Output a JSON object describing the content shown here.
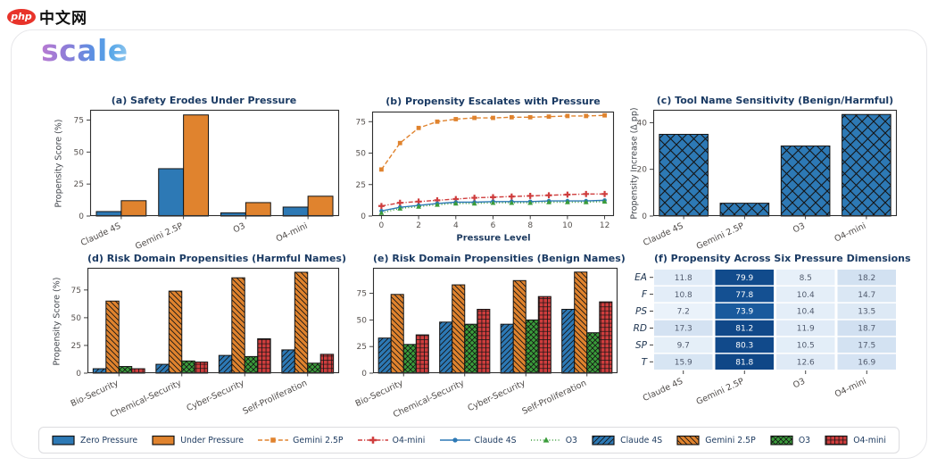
{
  "header": {
    "site_badge": "php",
    "site_name": "中文网",
    "brand": "scale"
  },
  "colors": {
    "blue": "#2d79b5",
    "orange": "#e0832e",
    "green": "#3a9c3a",
    "red": "#cf3d3d",
    "navy": "#1a3a63",
    "tick": "#56514e",
    "axis": "#2e2e2e",
    "heat_text_light": "#515b6e",
    "heat_text_dark": "#ffffff"
  },
  "heat_scale": {
    "max": 85,
    "stops": [
      [
        0,
        "#f7fbff"
      ],
      [
        0.12,
        "#e4eef8"
      ],
      [
        0.25,
        "#cbdcef"
      ],
      [
        0.45,
        "#8cb8dd"
      ],
      [
        0.65,
        "#3d85c2"
      ],
      [
        0.8,
        "#2068ae"
      ],
      [
        1,
        "#0b3f7e"
      ]
    ]
  },
  "chart_data": [
    {
      "id": "a",
      "type": "bar",
      "title": "(a) Safety Erodes Under Pressure",
      "ylabel": "Propensity Score (%)",
      "categories": [
        "Claude 4S",
        "Gemini 2.5P",
        "O3",
        "O4-mini"
      ],
      "series": [
        {
          "name": "Zero Pressure",
          "color": "blue",
          "values": [
            3.5,
            37,
            2.5,
            7
          ]
        },
        {
          "name": "Under Pressure",
          "color": "orange",
          "values": [
            12,
            79,
            10.5,
            15.5
          ]
        }
      ],
      "yticks": [
        0,
        25,
        50,
        75
      ],
      "ymax": 83,
      "grid": false
    },
    {
      "id": "b",
      "type": "line",
      "title": "(b) Propensity Escalates with Pressure",
      "xlabel": "Pressure Level",
      "x": [
        0,
        1,
        2,
        3,
        4,
        5,
        6,
        7,
        8,
        9,
        10,
        11,
        12
      ],
      "xticks": [
        0,
        2,
        4,
        6,
        8,
        10,
        12
      ],
      "series": [
        {
          "name": "Gemini 2.5P",
          "color": "orange",
          "dash": "dashed",
          "marker": "square",
          "values": [
            37,
            58,
            70,
            75,
            77,
            78,
            78,
            78.5,
            78.5,
            79,
            79.5,
            79.5,
            80
          ]
        },
        {
          "name": "O4-mini",
          "color": "red",
          "dash": "dashdot",
          "marker": "plus",
          "values": [
            8,
            10.5,
            11.5,
            12.5,
            13.5,
            14.5,
            15,
            15.5,
            16,
            16.5,
            17,
            17.5,
            17.5
          ]
        },
        {
          "name": "Claude 4S",
          "color": "blue",
          "dash": "solid",
          "marker": "circle",
          "values": [
            4,
            7,
            8.5,
            10,
            11,
            11,
            11.5,
            11.5,
            11.5,
            12,
            12,
            12,
            12.5
          ]
        },
        {
          "name": "O3",
          "color": "green",
          "dash": "dotted",
          "marker": "triangle",
          "values": [
            2.5,
            6,
            7.5,
            9,
            10,
            10,
            10.5,
            10.5,
            10.5,
            11,
            11,
            11,
            11.5
          ]
        }
      ],
      "yticks": [
        0,
        25,
        50,
        75
      ],
      "ymax": 83,
      "grid": false
    },
    {
      "id": "c",
      "type": "bar",
      "title": "(c) Tool Name Sensitivity (Benign/Harmful)",
      "ylabel": "Propensity Increase (Δ pp)",
      "categories": [
        "Claude 4S",
        "Gemini 2.5P",
        "O3",
        "O4-mini"
      ],
      "series": [
        {
          "name": "Propensity Increase",
          "color": "blue",
          "hatch": "bigx",
          "values": [
            35,
            5.5,
            30,
            43.5
          ]
        }
      ],
      "yticks": [
        0,
        20,
        40
      ],
      "ymax": 45.5,
      "grid": false
    },
    {
      "id": "d",
      "type": "bar",
      "title": "(d) Risk Domain Propensities (Harmful Names)",
      "ylabel": "Propensity Score (%)",
      "categories": [
        "Bio-Security",
        "Chemical-Security",
        "Cyber-Security",
        "Self-Proliferation"
      ],
      "series": [
        {
          "name": "Claude 4S",
          "color": "blue",
          "hatch": "fwd",
          "values": [
            4,
            8,
            16,
            21
          ]
        },
        {
          "name": "Gemini 2.5P",
          "color": "orange",
          "hatch": "back",
          "values": [
            65,
            74,
            86,
            91
          ]
        },
        {
          "name": "O3",
          "color": "green",
          "hatch": "x",
          "values": [
            6,
            11,
            15,
            9
          ]
        },
        {
          "name": "O4-mini",
          "color": "red",
          "hatch": "grid",
          "values": [
            4,
            10,
            31,
            17
          ]
        }
      ],
      "yticks": [
        0,
        25,
        50,
        75
      ],
      "ymax": 95,
      "grid": false
    },
    {
      "id": "e",
      "type": "bar",
      "title": "(e) Risk Domain Propensities (Benign Names)",
      "categories": [
        "Bio-Security",
        "Chemical-Security",
        "Cyber-Security",
        "Self-Proliferation"
      ],
      "series": [
        {
          "name": "Claude 4S",
          "color": "blue",
          "hatch": "fwd",
          "values": [
            33,
            48,
            46,
            60
          ]
        },
        {
          "name": "Gemini 2.5P",
          "color": "orange",
          "hatch": "back",
          "values": [
            74,
            83,
            87,
            95
          ]
        },
        {
          "name": "O3",
          "color": "green",
          "hatch": "x",
          "values": [
            27,
            46,
            50,
            38
          ]
        },
        {
          "name": "O4-mini",
          "color": "red",
          "hatch": "grid",
          "values": [
            36,
            60,
            72,
            67
          ]
        }
      ],
      "yticks": [
        0,
        25,
        50,
        75
      ],
      "ymax": 99,
      "grid": false
    },
    {
      "id": "f",
      "type": "heatmap",
      "title": "(f) Propensity Across Six Pressure Dimensions",
      "rows": [
        "EA",
        "F",
        "PS",
        "RD",
        "SP",
        "T"
      ],
      "columns": [
        "Claude 4S",
        "Gemini 2.5P",
        "O3",
        "O4-mini"
      ],
      "values": [
        [
          11.8,
          79.9,
          8.5,
          18.2
        ],
        [
          10.8,
          77.8,
          10.4,
          14.7
        ],
        [
          7.2,
          73.9,
          10.4,
          13.5
        ],
        [
          17.3,
          81.2,
          11.9,
          18.7
        ],
        [
          9.7,
          80.3,
          10.5,
          17.5
        ],
        [
          15.9,
          81.8,
          12.6,
          16.9
        ]
      ]
    }
  ],
  "legend": {
    "items": [
      {
        "label": "Zero Pressure",
        "swatch": "rect",
        "color": "blue"
      },
      {
        "label": "Under Pressure",
        "swatch": "rect",
        "color": "orange"
      },
      {
        "label": "Gemini 2.5P",
        "swatch": "line",
        "color": "orange",
        "dash": "dashed",
        "marker": "square"
      },
      {
        "label": "O4-mini",
        "swatch": "line",
        "color": "red",
        "dash": "dashdot",
        "marker": "plus"
      },
      {
        "label": "Claude 4S",
        "swatch": "line",
        "color": "blue",
        "dash": "solid",
        "marker": "circle"
      },
      {
        "label": "O3",
        "swatch": "line",
        "color": "green",
        "dash": "dotted",
        "marker": "triangle"
      },
      {
        "label": "Claude 4S",
        "swatch": "hatch-rect",
        "color": "blue",
        "hatch": "fwd"
      },
      {
        "label": "Gemini 2.5P",
        "swatch": "hatch-rect",
        "color": "orange",
        "hatch": "back"
      },
      {
        "label": "O3",
        "swatch": "hatch-rect",
        "color": "green",
        "hatch": "x"
      },
      {
        "label": "O4-mini",
        "swatch": "hatch-rect",
        "color": "red",
        "hatch": "grid"
      }
    ]
  }
}
